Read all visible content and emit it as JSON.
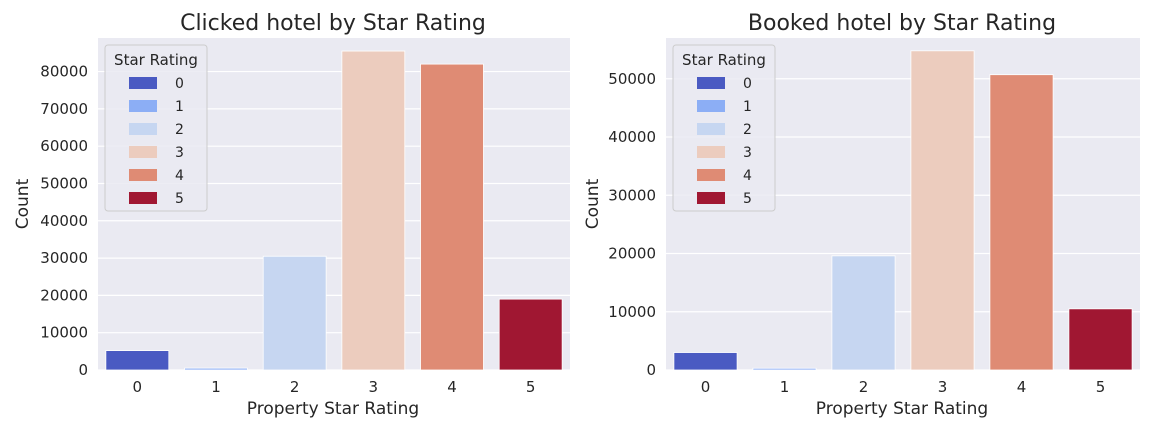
{
  "chart_data": [
    {
      "type": "bar",
      "title": "Clicked hotel by Star Rating",
      "xlabel": "Property Star Rating",
      "ylabel": "Count",
      "categories": [
        "0",
        "1",
        "2",
        "3",
        "4",
        "5"
      ],
      "values": [
        5200,
        500,
        30500,
        85500,
        82000,
        19000
      ],
      "ylim": [
        0,
        89000
      ],
      "yticks": [
        0,
        10000,
        20000,
        30000,
        40000,
        50000,
        60000,
        70000,
        80000
      ],
      "legend": {
        "title": "Star Rating",
        "entries": [
          "0",
          "1",
          "2",
          "3",
          "4",
          "5"
        ],
        "position": "upper-left"
      }
    },
    {
      "type": "bar",
      "title": "Booked hotel by Star Rating",
      "xlabel": "Property Star Rating",
      "ylabel": "Count",
      "categories": [
        "0",
        "1",
        "2",
        "3",
        "4",
        "5"
      ],
      "values": [
        3000,
        300,
        19600,
        54800,
        50700,
        10500
      ],
      "ylim": [
        0,
        57000
      ],
      "yticks": [
        0,
        10000,
        20000,
        30000,
        40000,
        50000
      ],
      "legend": {
        "title": "Star Rating",
        "entries": [
          "0",
          "1",
          "2",
          "3",
          "4",
          "5"
        ],
        "position": "upper-left"
      }
    }
  ],
  "colors": {
    "palette": [
      "#4a5ac2",
      "#8caef5",
      "#c6d6f1",
      "#ecccbe",
      "#df8b74",
      "#a01732"
    ],
    "axes_bg": "#eaeaf2",
    "grid": "#ffffff"
  }
}
